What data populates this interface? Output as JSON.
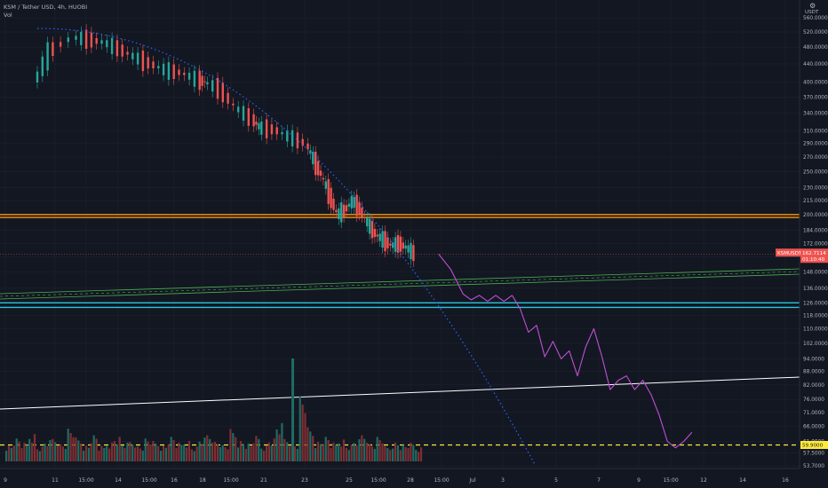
{
  "header": {
    "symbol_line": "KSM / Tether USD, 4h, HUOBI",
    "volume_label": "Vol"
  },
  "axis": {
    "currency": "USDT",
    "settings_icon": "gear-icon",
    "y_ticks": [
      "560.0000",
      "520.0000",
      "480.0000",
      "440.0000",
      "400.0000",
      "370.0000",
      "340.0000",
      "310.0000",
      "290.0000",
      "270.0000",
      "250.0000",
      "230.0000",
      "215.0000",
      "200.0000",
      "184.0000",
      "172.0000",
      "160.0000",
      "148.0000",
      "136.0000",
      "126.0000",
      "118.0000",
      "110.0000",
      "102.0000",
      "94.0000",
      "88.0000",
      "82.0000",
      "76.0000",
      "71.0000",
      "66.0000",
      "61.0000",
      "57.5000",
      "53.7000"
    ],
    "x_ticks": [
      "9",
      "11",
      "15:00",
      "14",
      "15:00",
      "16",
      "18",
      "15:00",
      "21",
      "23",
      "25",
      "15:00",
      "28",
      "15:00",
      "Jul",
      "3",
      "5",
      "7",
      "9",
      "15:00",
      "12",
      "14",
      "16"
    ]
  },
  "price_tag": {
    "symbol": "KSMUSDT",
    "price": "162.7114",
    "countdown": "01:10:40"
  },
  "target_tag": {
    "value": "59.9000"
  },
  "chart_data": {
    "type": "candlestick",
    "title": "KSM / Tether USD, 4h, HUOBI",
    "quote_currency": "USDT",
    "y_scale": "log",
    "ylim": [
      52,
      600
    ],
    "last_price": 162.7114,
    "horizontal_levels": [
      {
        "name": "resistance-orange-upper",
        "value": 200,
        "color": "#ff9800"
      },
      {
        "name": "resistance-orange-lower",
        "value": 197,
        "color": "#ff9800"
      },
      {
        "name": "support-cyan-upper",
        "value": 126,
        "color": "#26c6da"
      },
      {
        "name": "support-cyan-lower",
        "value": 123,
        "color": "#26c6da"
      },
      {
        "name": "target-yellow-dashed",
        "value": 59.9,
        "color": "#ffeb3b"
      }
    ],
    "price_path": [
      [
        4,
        399
      ],
      [
        6,
        470
      ],
      [
        9,
        505
      ],
      [
        11,
        500
      ],
      [
        13,
        492
      ],
      [
        15,
        475
      ],
      [
        17,
        455
      ],
      [
        19,
        440
      ],
      [
        21,
        425
      ],
      [
        23,
        420
      ],
      [
        25,
        405
      ],
      [
        26,
        400
      ],
      [
        28,
        385
      ],
      [
        30,
        350
      ],
      [
        32,
        330
      ],
      [
        33,
        315
      ],
      [
        35,
        312
      ],
      [
        37,
        300
      ],
      [
        39,
        290
      ],
      [
        40,
        265
      ],
      [
        41,
        245
      ],
      [
        42,
        222
      ],
      [
        43,
        200
      ],
      [
        44,
        205
      ],
      [
        45,
        215
      ],
      [
        46,
        205
      ],
      [
        47,
        190
      ],
      [
        48,
        180
      ],
      [
        49,
        175
      ],
      [
        50,
        170
      ],
      [
        51,
        172
      ],
      [
        52,
        168
      ],
      [
        53,
        162.7
      ]
    ],
    "projection_path": [
      [
        53,
        162.7
      ],
      [
        54.5,
        150
      ],
      [
        56,
        132
      ],
      [
        57,
        128
      ],
      [
        58,
        131
      ],
      [
        59,
        127
      ],
      [
        60,
        131
      ],
      [
        61,
        127
      ],
      [
        62,
        131
      ],
      [
        63,
        122
      ],
      [
        64,
        108
      ],
      [
        65,
        112
      ],
      [
        66,
        95
      ],
      [
        67,
        103
      ],
      [
        68,
        94
      ],
      [
        69,
        98
      ],
      [
        70,
        86
      ],
      [
        71,
        100
      ],
      [
        72,
        110
      ],
      [
        73,
        95
      ],
      [
        74,
        80
      ],
      [
        75,
        84
      ],
      [
        76,
        86
      ],
      [
        77,
        80
      ],
      [
        78,
        84
      ],
      [
        79,
        78
      ],
      [
        80,
        70
      ],
      [
        81,
        61
      ],
      [
        82,
        59
      ],
      [
        83,
        61
      ],
      [
        84,
        64
      ]
    ],
    "volume": [
      [
        0,
        20
      ],
      [
        1,
        28
      ],
      [
        2,
        22
      ],
      [
        3,
        35
      ],
      [
        4,
        18
      ],
      [
        5,
        25
      ],
      [
        6,
        30
      ],
      [
        7,
        22
      ],
      [
        8,
        40
      ],
      [
        9,
        28
      ],
      [
        10,
        20
      ],
      [
        11,
        32
      ],
      [
        12,
        18
      ],
      [
        13,
        24
      ],
      [
        14,
        30
      ],
      [
        15,
        22
      ],
      [
        16,
        26
      ],
      [
        17,
        19
      ],
      [
        18,
        28
      ],
      [
        19,
        24
      ],
      [
        20,
        20
      ],
      [
        21,
        30
      ],
      [
        22,
        22
      ],
      [
        23,
        26
      ],
      [
        24,
        18
      ],
      [
        25,
        28
      ],
      [
        26,
        35
      ],
      [
        27,
        25
      ],
      [
        28,
        20
      ],
      [
        29,
        38
      ],
      [
        30,
        26
      ],
      [
        31,
        22
      ],
      [
        32,
        30
      ],
      [
        33,
        20
      ],
      [
        34,
        28
      ],
      [
        35,
        45
      ],
      [
        36,
        30
      ],
      [
        37,
        22
      ],
      [
        38,
        80
      ],
      [
        39,
        40
      ],
      [
        40,
        25
      ],
      [
        41,
        30
      ],
      [
        42,
        22
      ],
      [
        43,
        28
      ],
      [
        44,
        20
      ],
      [
        45,
        26
      ],
      [
        46,
        35
      ],
      [
        47,
        22
      ],
      [
        48,
        30
      ],
      [
        49,
        18
      ],
      [
        50,
        24
      ],
      [
        51,
        20
      ],
      [
        52,
        22
      ],
      [
        53,
        18
      ]
    ]
  }
}
